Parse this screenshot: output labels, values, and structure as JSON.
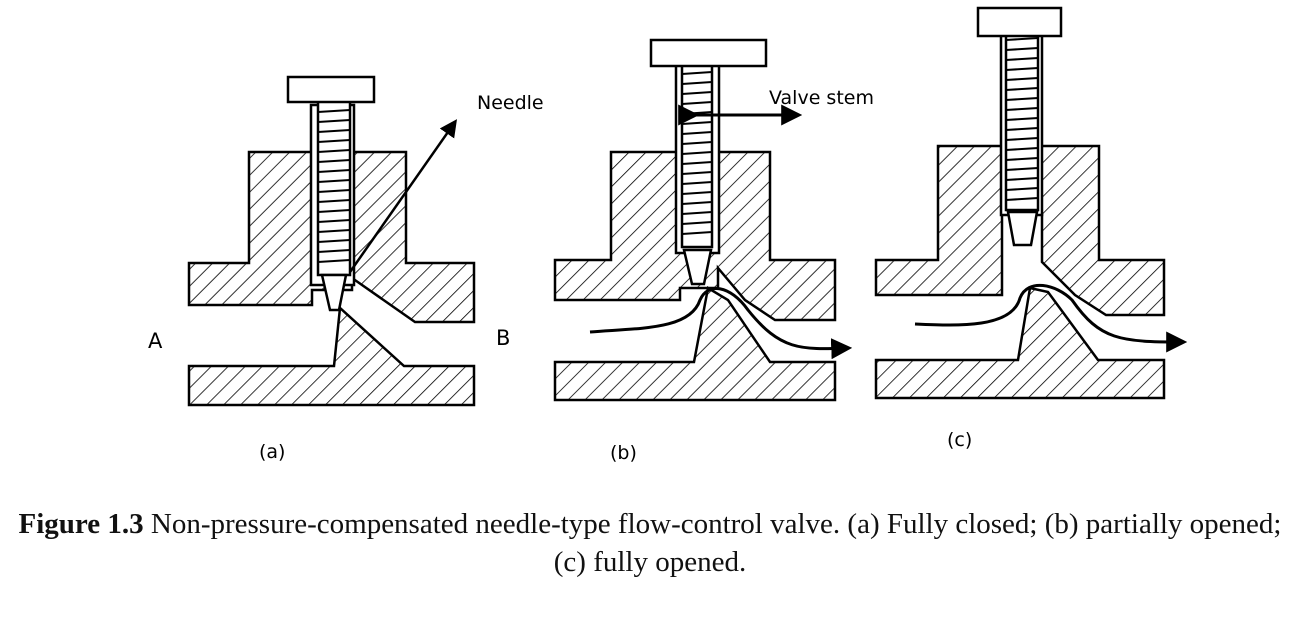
{
  "labels": {
    "needle": "Needle",
    "valve_stem": "Valve stem",
    "port_a": "A",
    "port_b": "B",
    "sub_a": "(a)",
    "sub_b": "(b)",
    "sub_c": "(c)"
  },
  "caption": {
    "number": "Figure 1.3",
    "text": " Non-pressure-compensated needle-type flow-control valve. (a) Fully closed; (b) partially opened; (c) fully opened."
  }
}
